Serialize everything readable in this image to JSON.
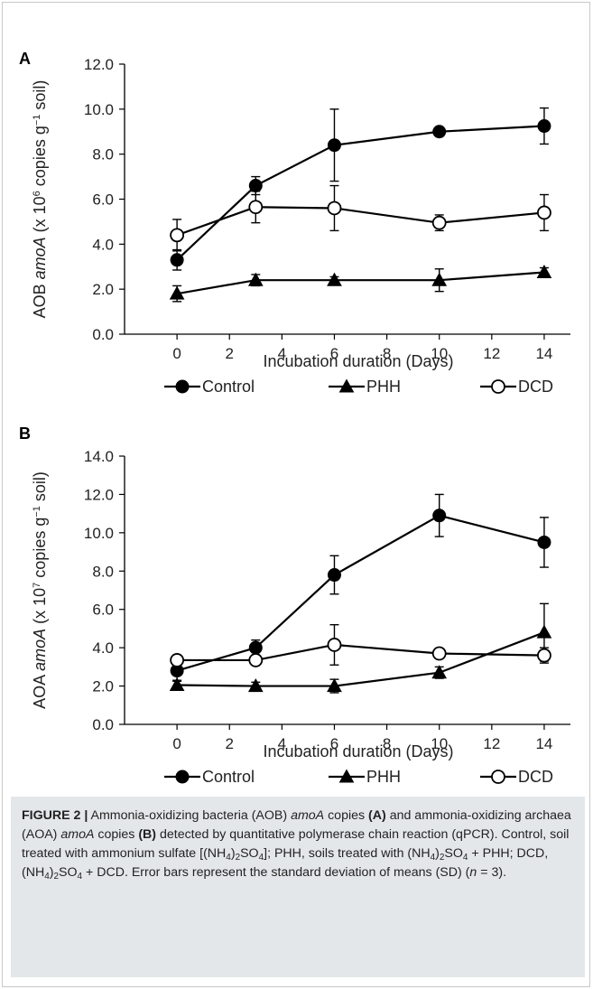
{
  "chart_data": [
    {
      "type": "line",
      "panel": "A",
      "ylabel_parts": {
        "pre": "AOB ",
        "ital": "amoA",
        "mid": " (x 10",
        "sup1": "6",
        "post": " copies g",
        "sup2": "−1",
        "end": " soil)"
      },
      "xlabel": "Incubation duration (Days)",
      "x": [
        0,
        3,
        6,
        10,
        14
      ],
      "xlim": [
        -2,
        15
      ],
      "xticks": [
        0,
        2,
        4,
        6,
        8,
        10,
        12,
        14
      ],
      "ylim": [
        0,
        12
      ],
      "yticks": [
        0,
        2,
        4,
        6,
        8,
        10,
        12
      ],
      "ytick_labels": [
        "0.0",
        "2.0",
        "4.0",
        "6.0",
        "8.0",
        "10.0",
        "12.0"
      ],
      "series": [
        {
          "name": "Control",
          "marker": "filled-circle",
          "values": [
            3.3,
            6.6,
            8.4,
            9.0,
            9.25
          ],
          "errors": [
            0.45,
            0.4,
            1.6,
            0.1,
            0.8
          ]
        },
        {
          "name": "PHH",
          "marker": "filled-triangle",
          "values": [
            1.8,
            2.4,
            2.4,
            2.4,
            2.75
          ],
          "errors": [
            0.35,
            0.25,
            0.15,
            0.5,
            0.2
          ]
        },
        {
          "name": "DCD",
          "marker": "open-circle",
          "values": [
            4.4,
            5.65,
            5.6,
            4.95,
            5.4
          ],
          "errors": [
            0.7,
            0.7,
            1.0,
            0.35,
            0.8
          ]
        }
      ]
    },
    {
      "type": "line",
      "panel": "B",
      "ylabel_parts": {
        "pre": "AOA ",
        "ital": "amoA",
        "mid": " (x 10",
        "sup1": "7",
        "post": " copies g",
        "sup2": "−1",
        "end": " soil)"
      },
      "xlabel": "Incubation duration (Days)",
      "x": [
        0,
        3,
        6,
        10,
        14
      ],
      "xlim": [
        -2,
        15
      ],
      "xticks": [
        0,
        2,
        4,
        6,
        8,
        10,
        12,
        14
      ],
      "ylim": [
        0,
        14
      ],
      "yticks": [
        0,
        2,
        4,
        6,
        8,
        10,
        12,
        14
      ],
      "ytick_labels": [
        "0.0",
        "2.0",
        "4.0",
        "6.0",
        "8.0",
        "10.0",
        "12.0",
        "14.0"
      ],
      "series": [
        {
          "name": "Control",
          "marker": "filled-circle",
          "values": [
            2.8,
            4.0,
            7.8,
            10.9,
            9.5
          ],
          "errors": [
            0.5,
            0.4,
            1.0,
            1.1,
            1.3
          ]
        },
        {
          "name": "PHH",
          "marker": "filled-triangle",
          "values": [
            2.05,
            2.0,
            2.0,
            2.7,
            4.8
          ],
          "errors": [
            0.2,
            0.2,
            0.35,
            0.3,
            1.5
          ]
        },
        {
          "name": "DCD",
          "marker": "open-circle",
          "values": [
            3.35,
            3.35,
            4.15,
            3.7,
            3.6
          ],
          "errors": [
            0.1,
            0.15,
            1.05,
            0.15,
            0.4
          ]
        }
      ]
    }
  ],
  "caption": {
    "label": "FIGURE 2 |",
    "p1": " Ammonia-oxidizing bacteria (AOB) ",
    "amoA": "amoA",
    "p2": " copies ",
    "a": "(A)",
    "p3": " and ammonia-oxidizing archaea (AOA) ",
    "p4": " copies ",
    "b": "(B)",
    "p5": " detected by quantitative polymerase chain reaction (qPCR). Control, soil treated with ammonium sulfate [(NH",
    "sub4": "4",
    "p6": ")",
    "sub2": "2",
    "p7": "SO",
    "p8": "]; PHH, soils treated with (NH",
    "p9": "SO",
    "p10": " + PHH; DCD, (NH",
    "p11": "SO",
    "p12": " + DCD. Error bars represent the standard deviation of means (SD) (",
    "n": "n",
    "p13": " = 3)."
  }
}
